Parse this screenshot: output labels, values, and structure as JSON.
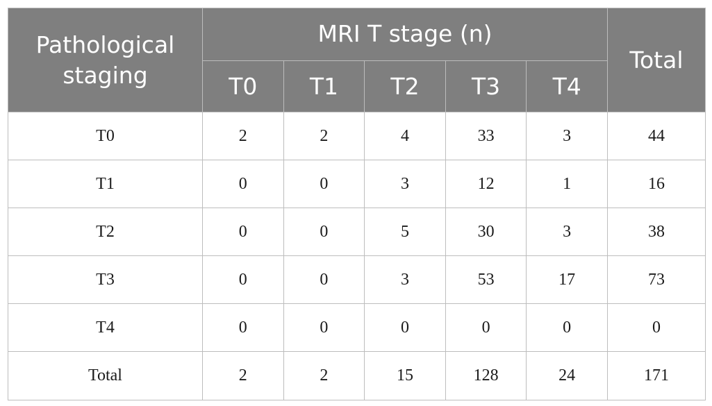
{
  "header": {
    "row_label": "Pathological staging",
    "group_label": "MRI T stage (n)",
    "total_label": "Total",
    "sub_columns": [
      "T0",
      "T1",
      "T2",
      "T3",
      "T4"
    ]
  },
  "rows": [
    {
      "label": "T0",
      "values": [
        "2",
        "2",
        "4",
        "33",
        "3"
      ],
      "total": "44"
    },
    {
      "label": "T1",
      "values": [
        "0",
        "0",
        "3",
        "12",
        "1"
      ],
      "total": "16"
    },
    {
      "label": "T2",
      "values": [
        "0",
        "0",
        "5",
        "30",
        "3"
      ],
      "total": "38"
    },
    {
      "label": "T3",
      "values": [
        "0",
        "0",
        "3",
        "53",
        "17"
      ],
      "total": "73"
    },
    {
      "label": "T4",
      "values": [
        "0",
        "0",
        "0",
        "0",
        "0"
      ],
      "total": "0"
    },
    {
      "label": "Total",
      "values": [
        "2",
        "2",
        "15",
        "128",
        "24"
      ],
      "total": "171"
    }
  ],
  "colors": {
    "header_background": "#7f7f7f",
    "header_text": "#ffffff",
    "border": "#bdbdbd"
  }
}
